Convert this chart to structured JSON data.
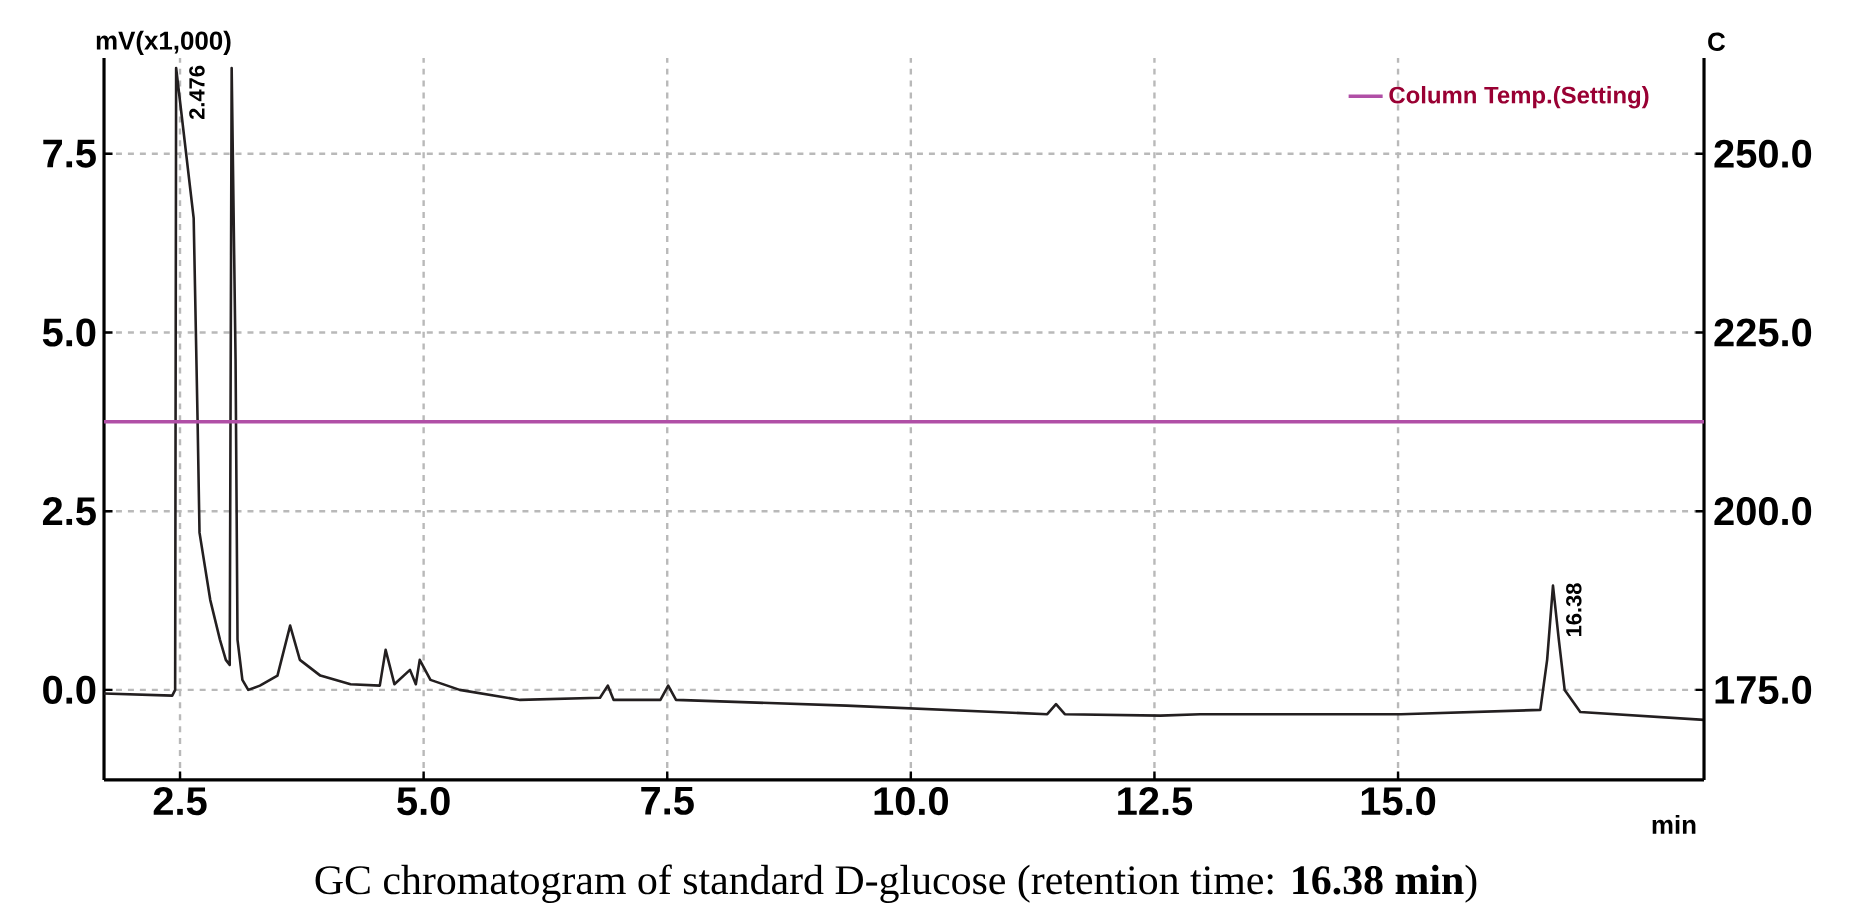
{
  "chart_data": {
    "type": "line",
    "xlabel": "min",
    "ylabel": "mV(x1,000)",
    "y2label": "C",
    "xlim": [
      1.72,
      18.14
    ],
    "ylim": [
      -1.26,
      8.84
    ],
    "y2lim": [
      162.4,
      263.4
    ],
    "xticks": [
      2.5,
      {
        "value": 5,
        "label": "5.0"
      },
      {
        "value": 7.5,
        "label": "7.5"
      },
      {
        "value": 10,
        "label": "10.0"
      },
      {
        "value": 12.5,
        "label": "12.5"
      },
      {
        "value": 15,
        "label": "15.0"
      }
    ],
    "yticks": [
      {
        "value": 0,
        "label": "0.0"
      },
      {
        "value": 2.5,
        "label": "2.5"
      },
      {
        "value": 5,
        "label": "5.0"
      },
      {
        "value": 7.5,
        "label": "7.5"
      }
    ],
    "y2ticks": [
      {
        "value": 175,
        "label": "175.0"
      },
      {
        "value": 200,
        "label": "200.0"
      },
      {
        "value": 225,
        "label": "225.0"
      },
      {
        "value": 250,
        "label": "250.0"
      }
    ],
    "grid": true,
    "legend": "top right",
    "series": [
      {
        "color": "#231f20",
        "x": [
          1.72,
          2.42,
          2.45,
          2.46,
          2.64,
          2.68,
          2.7,
          2.81,
          2.91,
          2.97,
          3.01,
          3.03,
          3.07,
          3.09,
          3.14,
          3.2,
          3.32,
          3.5,
          3.63,
          3.73,
          3.94,
          4.25,
          4.55,
          4.61,
          4.7,
          4.86,
          4.92,
          4.96,
          5.07,
          5.37,
          5.99,
          6.81,
          6.89,
          6.95,
          7.43,
          7.51,
          7.59,
          9.34,
          11.4,
          11.49,
          11.58,
          12.56,
          12.97,
          15.03,
          16.46,
          16.53,
          16.59,
          16.65,
          16.71,
          16.87,
          18.14
        ],
        "values": [
          -0.05,
          -0.08,
          0.0,
          8.7,
          6.6,
          3.78,
          2.2,
          1.26,
          0.7,
          0.42,
          0.35,
          8.7,
          4.62,
          0.7,
          0.14,
          0.0,
          0.06,
          0.2,
          0.9,
          0.42,
          0.2,
          0.08,
          0.06,
          0.56,
          0.08,
          0.28,
          0.08,
          0.42,
          0.14,
          0.0,
          -0.14,
          -0.11,
          0.06,
          -0.14,
          -0.14,
          0.06,
          -0.14,
          -0.22,
          -0.34,
          -0.2,
          -0.34,
          -0.36,
          -0.34,
          -0.34,
          -0.28,
          0.42,
          1.46,
          0.7,
          0.0,
          -0.31,
          -0.42
        ]
      },
      {
        "name": "Column Temp.(Setting)",
        "color": "#b04fa6",
        "axis": "y2",
        "x": [
          1.72,
          18.14
        ],
        "values": [
          212.5,
          212.5
        ]
      }
    ],
    "annotations": [
      {
        "text": "2.476",
        "x": 2.46,
        "y": 8.7
      },
      {
        "text": "16.38",
        "x": 16.59,
        "y": 1.46
      },
      "GC chromatogram of standard D-glucose (retention time: **16.38 min**)"
    ]
  }
}
